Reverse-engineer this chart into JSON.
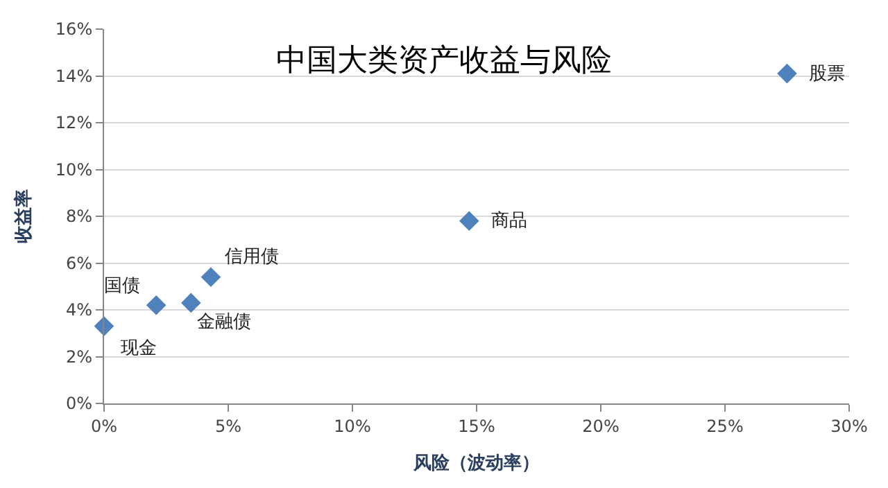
{
  "chart_data": {
    "type": "scatter",
    "title": "中国大类资产收益与风险",
    "xlabel": "风险（波动率）",
    "ylabel": "收益率",
    "x": [
      0,
      2.1,
      3.5,
      4.3,
      14.7,
      27.5
    ],
    "series": [
      {
        "color": "#4f81bd",
        "values": [
          3.3,
          4.2,
          4.3,
          5.4,
          7.8,
          14.1
        ]
      }
    ],
    "annotations": [
      {
        "text": "现金",
        "x": 0,
        "y": 3.3
      },
      {
        "text": "国债",
        "x": 2.1,
        "y": 4.2
      },
      {
        "text": "金融债",
        "x": 3.5,
        "y": 4.3
      },
      {
        "text": "信用债",
        "x": 4.3,
        "y": 5.4
      },
      {
        "text": "商品",
        "x": 14.7,
        "y": 7.8
      },
      {
        "text": "股票",
        "x": 27.5,
        "y": 14.1
      }
    ],
    "xlim": [
      0,
      30
    ],
    "ylim": [
      0,
      16
    ],
    "xticks": [
      {
        "value": 0,
        "label": "0%"
      },
      {
        "value": 5,
        "label": "5%"
      },
      {
        "value": 10,
        "label": "10%"
      },
      {
        "value": 15,
        "label": "15%"
      },
      {
        "value": 20,
        "label": "20%"
      },
      {
        "value": 25,
        "label": "25%"
      },
      {
        "value": 30,
        "label": "30%"
      }
    ],
    "yticks": [
      {
        "value": 0,
        "label": "0%"
      },
      {
        "value": 2,
        "label": "2%"
      },
      {
        "value": 4,
        "label": "4%"
      },
      {
        "value": 6,
        "label": "6%"
      },
      {
        "value": 8,
        "label": "8%"
      },
      {
        "value": 10,
        "label": "10%"
      },
      {
        "value": 12,
        "label": "12%"
      },
      {
        "value": 14,
        "label": "14%"
      },
      {
        "value": 16,
        "label": "16%"
      }
    ],
    "grid": "y",
    "marker": "diamond"
  }
}
